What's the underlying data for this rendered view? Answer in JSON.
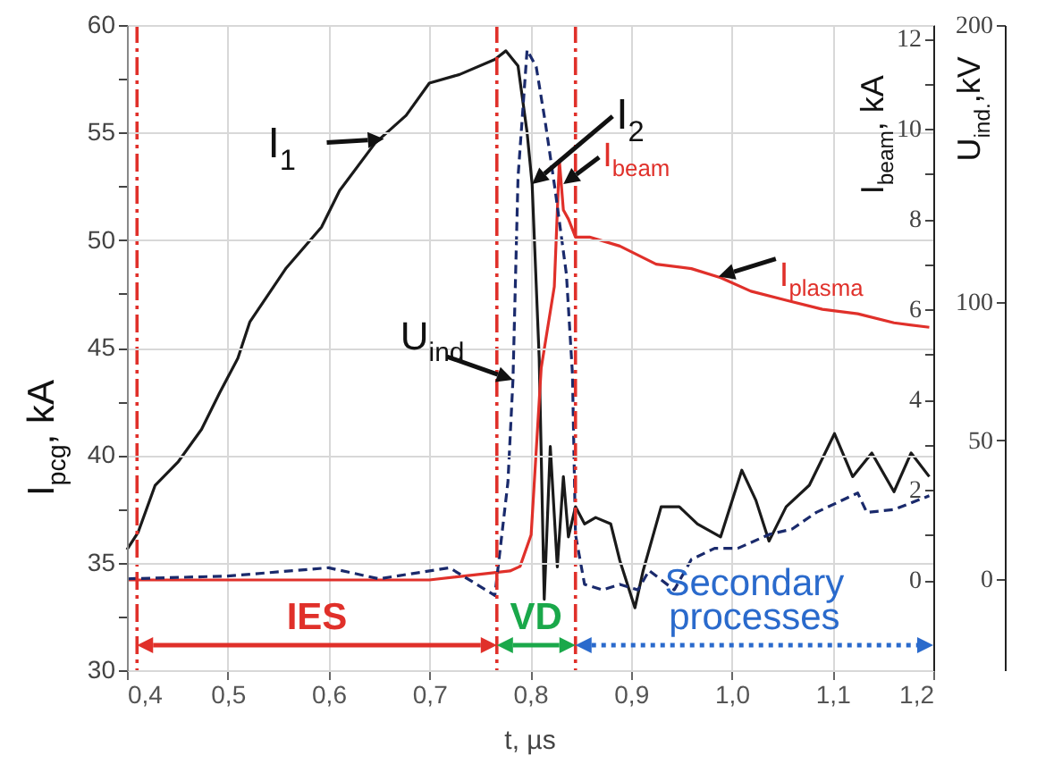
{
  "chart_data": {
    "type": "line",
    "xlabel": "t, µs",
    "ylabel": "I$_{pcg}$, kA",
    "y2label": "I$_{beam}$, kA",
    "y3label": "U$_{ind.}$,kV",
    "xlim": [
      0.4,
      1.2
    ],
    "xticks": [
      {
        "value": 0.4,
        "label": "0,4"
      },
      {
        "value": 0.5,
        "label": "0,5"
      },
      {
        "value": 0.6,
        "label": "0,6"
      },
      {
        "value": 0.7,
        "label": "0,7"
      },
      {
        "value": 0.8,
        "label": "0,8"
      },
      {
        "value": 0.9,
        "label": "0,9"
      },
      {
        "value": 1.0,
        "label": "1,0"
      },
      {
        "value": 1.1,
        "label": "1,1"
      },
      {
        "value": 1.2,
        "label": "1,2"
      }
    ],
    "ylim": [
      30,
      60
    ],
    "yticks": [
      30,
      {
        "value": 32.5,
        "label": null
      },
      35,
      {
        "value": 37.5,
        "label": null
      },
      40,
      {
        "value": 42.5,
        "label": null
      },
      45,
      {
        "value": 47.5,
        "label": null
      },
      50,
      {
        "value": 52.5,
        "label": null
      },
      55,
      {
        "value": 57.5,
        "label": null
      },
      60
    ],
    "y2lim": [
      -2,
      12.3
    ],
    "y2ticks": [
      0,
      {
        "value": 1,
        "label": null
      },
      2,
      {
        "value": 3,
        "label": null
      },
      4,
      {
        "value": 5,
        "label": null
      },
      6,
      {
        "value": 7,
        "label": null
      },
      8,
      {
        "value": 9,
        "label": null
      },
      10,
      {
        "value": 11,
        "label": null
      },
      12
    ],
    "y3lim": [
      -33,
      200
    ],
    "y3ticks": [
      0,
      50,
      100,
      200
    ],
    "grid": true,
    "marker": "none",
    "series": [
      {
        "color": "#1a1a1a",
        "line_style": "solid",
        "x": [
          0.4,
          0.411,
          0.428,
          0.451,
          0.474,
          0.492,
          0.51,
          0.522,
          0.558,
          0.593,
          0.611,
          0.646,
          0.677,
          0.7,
          0.73,
          0.765,
          0.776,
          0.788,
          0.797,
          0.802,
          0.809,
          0.814,
          0.82,
          0.827,
          0.833,
          0.838,
          0.845,
          0.854,
          0.865,
          0.88,
          0.889,
          0.904,
          0.912,
          0.93,
          0.948,
          0.966,
          0.989,
          1.01,
          1.024,
          1.037,
          1.054,
          1.077,
          1.102,
          1.12,
          1.139,
          1.161,
          1.178,
          1.196
        ],
        "values": [
          35.6,
          36.4,
          38.6,
          39.7,
          41.2,
          42.9,
          44.5,
          46.2,
          48.7,
          50.6,
          52.3,
          54.5,
          55.8,
          57.3,
          57.7,
          58.4,
          58.8,
          58.1,
          55.0,
          52.6,
          44.5,
          33.3,
          40.4,
          34.8,
          39.0,
          36.2,
          37.6,
          36.8,
          37.1,
          36.8,
          35.1,
          32.9,
          34.6,
          37.6,
          37.6,
          36.8,
          36.2,
          39.3,
          37.9,
          36.0,
          37.6,
          38.6,
          41.0,
          39.0,
          40.1,
          38.3,
          40.1,
          39.0
        ]
      },
      {
        "color": "#e0302a",
        "line_style": "solid",
        "axis": "y2",
        "x": [
          0.4,
          0.5,
          0.6,
          0.7,
          0.78,
          0.79,
          0.801,
          0.811,
          0.824,
          0.829,
          0.833,
          0.838,
          0.845,
          0.859,
          0.889,
          0.925,
          0.96,
          0.989,
          1.019,
          1.054,
          1.09,
          1.125,
          1.161,
          1.196
        ],
        "values": [
          0,
          0,
          0,
          0,
          0.2,
          0.3,
          1.0,
          4.7,
          6.5,
          9.3,
          8.2,
          8.0,
          7.6,
          7.6,
          7.4,
          7.0,
          6.9,
          6.7,
          6.4,
          6.2,
          6.0,
          5.9,
          5.7,
          5.6
        ]
      },
      {
        "color": "#1a2a6c",
        "line_style": "dashed",
        "axis": "y3",
        "x": [
          0.4,
          0.5,
          0.6,
          0.65,
          0.72,
          0.765,
          0.778,
          0.783,
          0.788,
          0.797,
          0.806,
          0.815,
          0.825,
          0.836,
          0.842,
          0.845,
          0.854,
          0.872,
          0.889,
          0.907,
          0.918,
          0.943,
          0.96,
          0.983,
          1.006,
          1.037,
          1.06,
          1.084,
          1.125,
          1.134,
          1.161,
          1.196
        ],
        "values": [
          0,
          1,
          4,
          0,
          4,
          -6,
          35,
          72,
          145,
          191,
          185,
          165,
          140,
          110,
          74,
          16,
          -2,
          -4,
          -2,
          -4,
          3,
          -4,
          7,
          11,
          11,
          16,
          18,
          24,
          31,
          24,
          25,
          30
        ]
      }
    ],
    "ref_lines": [
      {
        "axis": "x",
        "value": 0.41,
        "color": "#e0302a",
        "line_style": "dashed"
      },
      {
        "axis": "x",
        "value": 0.767,
        "color": "#e0302a",
        "line_style": "dashed"
      },
      {
        "axis": "x",
        "value": 0.845,
        "color": "#e0302a",
        "line_style": "dashed"
      }
    ],
    "annotations": [
      {
        "text": "I$_{1}$",
        "x": 0.655,
        "y": 54.7
      },
      {
        "text": "I$_{2}$",
        "x": 0.802,
        "y": 52.6
      },
      {
        "text": "I$_{beam}$",
        "x": 0.833,
        "y": 52.6
      },
      {
        "text": "I$_{plasma}$",
        "x": 0.987,
        "y": 48.3
      },
      {
        "text": "U$_{ind}$",
        "x": 0.783,
        "y": 43.5
      },
      "IES",
      "VD",
      "Secondary processes"
    ]
  }
}
